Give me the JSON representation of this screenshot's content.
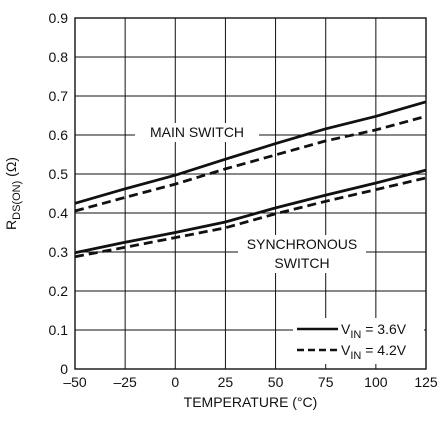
{
  "chart_data": {
    "type": "line",
    "xlabel": "TEMPERATURE (°C)",
    "ylabel": {
      "prefix": "R",
      "sub": "DS(ON)",
      "suffix": " (Ω)"
    },
    "xlim": [
      -50,
      125
    ],
    "ylim": [
      0,
      0.9
    ],
    "xticks": [
      -50,
      -25,
      0,
      25,
      50,
      75,
      100,
      125
    ],
    "xtick_labels": [
      "–50",
      "–25",
      "0",
      "25",
      "50",
      "75",
      "100",
      "125"
    ],
    "yticks": [
      0,
      0.1,
      0.2,
      0.3,
      0.4,
      0.5,
      0.6,
      0.7,
      0.8,
      0.9
    ],
    "ytick_labels": [
      "0",
      "0.1",
      "0.2",
      "0.3",
      "0.4",
      "0.5",
      "0.6",
      "0.7",
      "0.8",
      "0.9"
    ],
    "grid": true,
    "legend_position": "bottom-right",
    "legend": [
      {
        "prefix": "V",
        "sub": "IN",
        "suffix": " = 3.6V",
        "style": "solid"
      },
      {
        "prefix": "V",
        "sub": "IN",
        "suffix": " = 4.2V",
        "style": "dashed"
      }
    ],
    "annotations": {
      "main_switch": "MAIN SWITCH",
      "synchronous_line1": "SYNCHRONOUS",
      "synchronous_line2": "SWITCH"
    },
    "series": [
      {
        "group": "main_switch",
        "style": "solid",
        "x": [
          -50,
          -25,
          0,
          25,
          50,
          75,
          100,
          125
        ],
        "y": [
          0.425,
          0.462,
          0.497,
          0.538,
          0.578,
          0.616,
          0.648,
          0.685
        ]
      },
      {
        "group": "main_switch",
        "style": "dashed",
        "x": [
          -50,
          -25,
          0,
          25,
          50,
          75,
          100,
          125
        ],
        "y": [
          0.405,
          0.44,
          0.474,
          0.513,
          0.549,
          0.585,
          0.613,
          0.648
        ]
      },
      {
        "group": "synchronous_switch",
        "style": "solid",
        "x": [
          -50,
          -25,
          0,
          25,
          50,
          75,
          100,
          125
        ],
        "y": [
          0.298,
          0.325,
          0.35,
          0.377,
          0.413,
          0.446,
          0.477,
          0.51
        ]
      },
      {
        "group": "synchronous_switch",
        "style": "dashed",
        "x": [
          -50,
          -25,
          0,
          25,
          50,
          75,
          100,
          125
        ],
        "y": [
          0.288,
          0.312,
          0.337,
          0.362,
          0.398,
          0.43,
          0.46,
          0.49
        ]
      }
    ]
  }
}
